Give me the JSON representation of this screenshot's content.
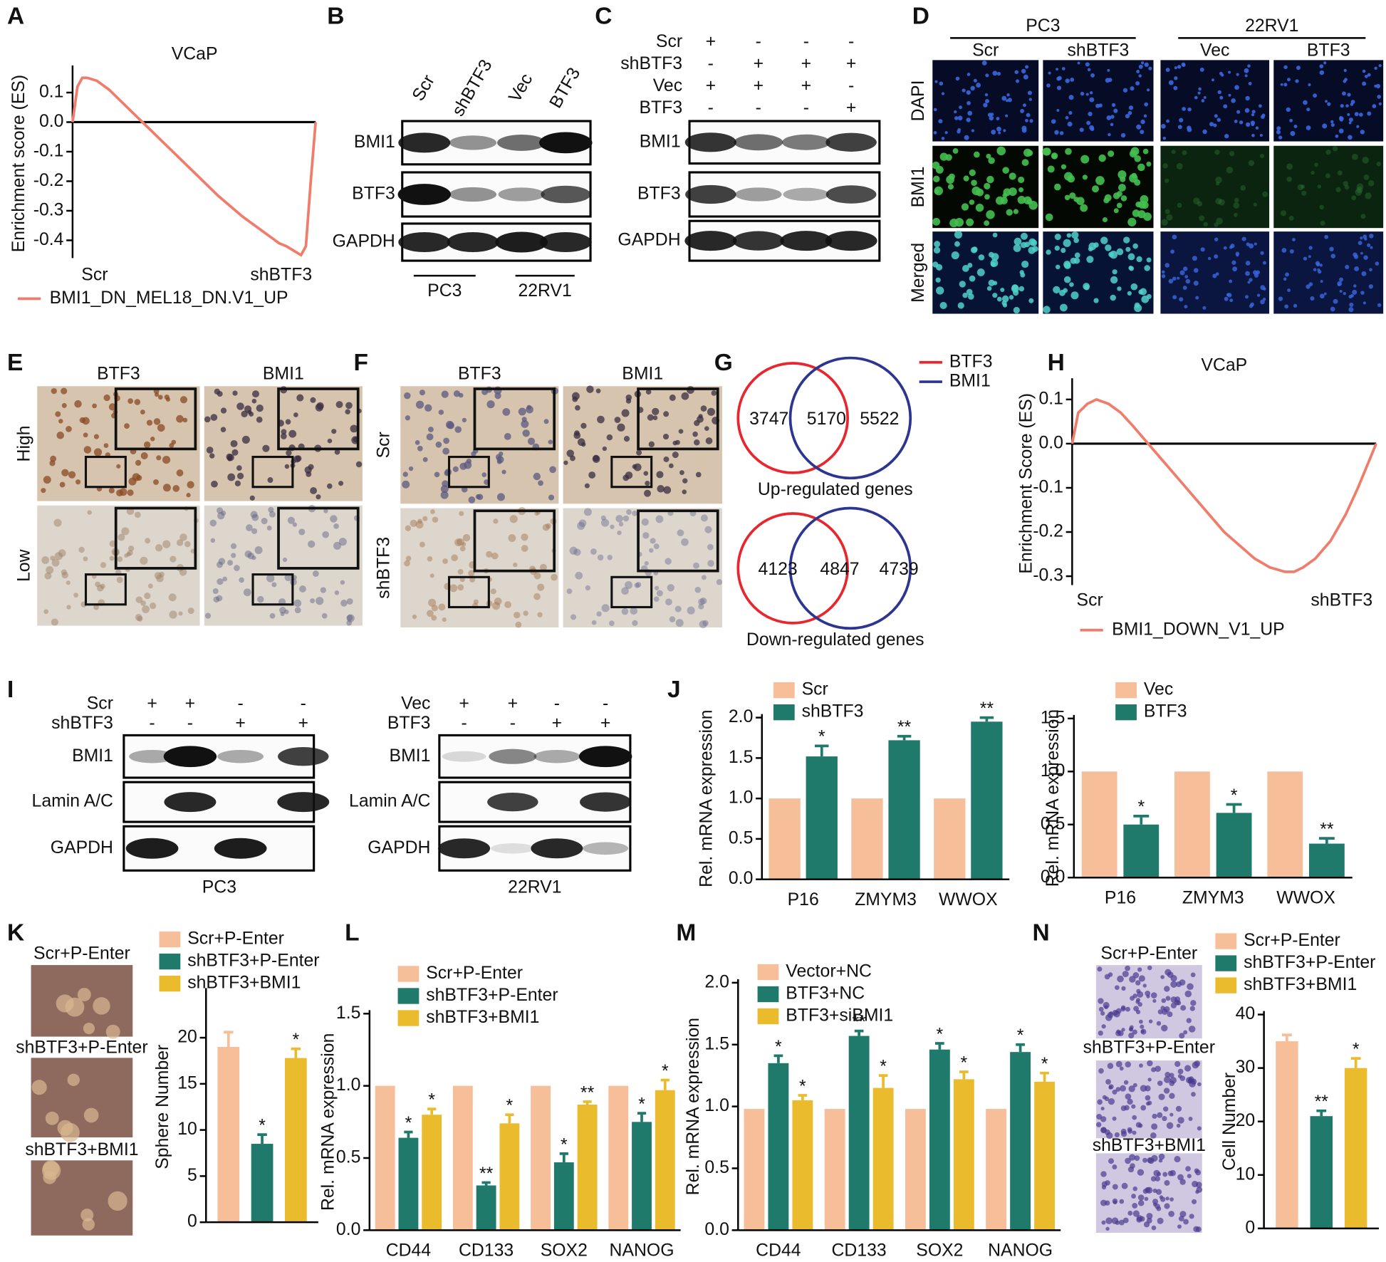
{
  "panel_labels": [
    "A",
    "B",
    "C",
    "D",
    "E",
    "F",
    "G",
    "H",
    "I",
    "J",
    "K",
    "L",
    "M",
    "N"
  ],
  "chart_data": [
    {
      "type": "line",
      "title": "VCaP",
      "y_label": "Enrichment score (ES)",
      "x_labels": [
        "Scr",
        "shBTF3"
      ],
      "xlim": [
        0,
        100
      ],
      "ylim": [
        -0.46,
        0.18
      ],
      "yticks": [
        0.1,
        {
          "value": 0,
          "label": "0.0"
        },
        -0.1,
        -0.2,
        -0.3,
        -0.4
      ],
      "series": [
        {
          "name": "BMI1_DN_MEL18_DN.V1_UP",
          "color": "#f07c6c",
          "x": [
            0,
            2,
            4,
            6,
            10,
            15,
            20,
            25,
            30,
            40,
            50,
            60,
            70,
            80,
            85,
            88,
            90,
            92,
            94,
            96,
            98,
            100
          ],
          "values": [
            0,
            0.12,
            0.15,
            0.15,
            0.14,
            0.11,
            0.07,
            0.03,
            -0.01,
            -0.09,
            -0.17,
            -0.25,
            -0.32,
            -0.38,
            -0.41,
            -0.42,
            -0.43,
            -0.44,
            -0.45,
            -0.42,
            -0.2,
            0
          ]
        }
      ]
    },
    {
      "type": "line",
      "title": "VCaP",
      "y_label": "Enrichment Score (ES)",
      "x_labels": [
        "Scr",
        "shBTF3"
      ],
      "xlim": [
        0,
        100
      ],
      "ylim": [
        -0.32,
        0.14
      ],
      "yticks": [
        0.1,
        {
          "value": 0,
          "label": "0.0"
        },
        -0.1,
        -0.2,
        -0.3
      ],
      "series": [
        {
          "name": "BMI1_DOWN_V1_UP",
          "color": "#f07c6c",
          "x": [
            0,
            2,
            5,
            8,
            12,
            16,
            20,
            25,
            30,
            40,
            50,
            60,
            65,
            70,
            73,
            76,
            80,
            85,
            90,
            94,
            97,
            100
          ],
          "values": [
            0,
            0.07,
            0.09,
            0.1,
            0.09,
            0.07,
            0.04,
            0,
            -0.04,
            -0.12,
            -0.2,
            -0.26,
            -0.28,
            -0.29,
            -0.29,
            -0.28,
            -0.26,
            -0.22,
            -0.16,
            -0.1,
            -0.05,
            0
          ]
        }
      ]
    },
    {
      "type": "bar",
      "y_label": "Rel. mRNA  expression",
      "categories": [
        "P16",
        "ZMYM3",
        "WWOX"
      ],
      "ylim": [
        0,
        2
      ],
      "yticks": [
        {
          "value": 0,
          "label": "0.0"
        },
        0.5,
        {
          "value": 1,
          "label": "1.0"
        },
        1.5,
        {
          "value": 2,
          "label": "2.0"
        }
      ],
      "series": [
        {
          "name": "Scr",
          "color": "#f7be9a",
          "values": [
            1,
            1,
            1
          ]
        },
        {
          "name": "shBTF3",
          "color": "#1f7a6b",
          "values": [
            1.52,
            1.72,
            1.95
          ],
          "errors": [
            0.13,
            0.05,
            0.05
          ],
          "significance": [
            "*",
            "**",
            "**"
          ]
        }
      ]
    },
    {
      "type": "bar",
      "y_label": "Rel. mRNA  expression",
      "categories": [
        "P16",
        "ZMYM3",
        "WWOX"
      ],
      "ylim": [
        0,
        1.5
      ],
      "yticks": [
        {
          "value": 0,
          "label": "0.0"
        },
        0.5,
        {
          "value": 1,
          "label": "1.0"
        },
        1.5
      ],
      "series": [
        {
          "name": "Vec",
          "color": "#f7be9a",
          "values": [
            1,
            1,
            1
          ]
        },
        {
          "name": "BTF3",
          "color": "#1f7a6b",
          "values": [
            0.5,
            0.61,
            0.32
          ],
          "errors": [
            0.08,
            0.08,
            0.05
          ],
          "significance": [
            "*",
            "*",
            "**"
          ]
        }
      ]
    },
    {
      "type": "bar",
      "y_label": "Sphere Number",
      "categories": [
        null
      ],
      "ylim": [
        0,
        25
      ],
      "yticks": [
        0,
        5,
        10,
        15,
        20
      ],
      "series": [
        {
          "name": "Scr+P-Enter",
          "color": "#f7be9a",
          "values": [
            19
          ],
          "errors": [
            1.6
          ]
        },
        {
          "name": "shBTF3+P-Enter",
          "color": "#1f7a6b",
          "values": [
            8.5
          ],
          "errors": [
            1
          ],
          "significance": [
            "*"
          ]
        },
        {
          "name": "shBTF3+BMI1",
          "color": "#ebbb2e",
          "values": [
            17.8
          ],
          "errors": [
            1
          ],
          "significance": [
            "*"
          ]
        }
      ]
    },
    {
      "type": "bar",
      "y_label": "Rel. mRNA expression",
      "categories": [
        "CD44",
        "CD133",
        "SOX2",
        "NANOG"
      ],
      "ylim": [
        0,
        1.5
      ],
      "yticks": [
        {
          "value": 0,
          "label": "0.0"
        },
        0.5,
        {
          "value": 1,
          "label": "1.0"
        },
        1.5
      ],
      "series": [
        {
          "name": "Scr+P-Enter",
          "color": "#f7be9a",
          "values": [
            1,
            1,
            1,
            1
          ]
        },
        {
          "name": "shBTF3+P-Enter",
          "color": "#1f7a6b",
          "values": [
            0.64,
            0.31,
            0.47,
            0.75
          ],
          "errors": [
            0.04,
            0.02,
            0.06,
            0.06
          ],
          "significance": [
            "*",
            "**",
            "*",
            "*"
          ]
        },
        {
          "name": "shBTF3+BMI1",
          "color": "#ebbb2e",
          "values": [
            0.8,
            0.74,
            0.87,
            0.97
          ],
          "errors": [
            0.04,
            0.06,
            0.02,
            0.07
          ],
          "significance": [
            "*",
            "*",
            "**",
            "*"
          ]
        }
      ]
    },
    {
      "type": "bar",
      "y_label": "Rel. mRNA expression",
      "categories": [
        "CD44",
        "CD133",
        "SOX2",
        "NANOG"
      ],
      "ylim": [
        0,
        2
      ],
      "yticks": [
        {
          "value": 0,
          "label": "0.0"
        },
        0.5,
        {
          "value": 1,
          "label": "1.0"
        },
        1.5,
        {
          "value": 2,
          "label": "2.0"
        }
      ],
      "series": [
        {
          "name": "Vector+NC",
          "color": "#f7be9a",
          "values": [
            0.98,
            0.98,
            0.98,
            0.98
          ]
        },
        {
          "name": "BTF3+NC",
          "color": "#1f7a6b",
          "values": [
            1.35,
            1.57,
            1.46,
            1.44
          ],
          "errors": [
            0.06,
            0.04,
            0.05,
            0.06
          ],
          "significance": [
            "*",
            "**",
            "*",
            "*"
          ]
        },
        {
          "name": "BTF3+siBMI1",
          "color": "#ebbb2e",
          "values": [
            1.05,
            1.15,
            1.22,
            1.2
          ],
          "errors": [
            0.04,
            0.1,
            0.06,
            0.07
          ],
          "significance": [
            "*",
            "*",
            "*",
            "*"
          ]
        }
      ]
    },
    {
      "type": "bar",
      "y_label": "Cell Number",
      "categories": [
        null
      ],
      "ylim": [
        0,
        40
      ],
      "yticks": [
        0,
        10,
        20,
        30,
        40
      ],
      "series": [
        {
          "name": "Scr+P-Enter",
          "color": "#f7be9a",
          "values": [
            35
          ],
          "errors": [
            1.2
          ]
        },
        {
          "name": "shBTF3+P-Enter",
          "color": "#1f7a6b",
          "values": [
            21
          ],
          "errors": [
            1
          ],
          "significance": [
            "**"
          ]
        },
        {
          "name": "shBTF3+BMI1",
          "color": "#ebbb2e",
          "values": [
            30
          ],
          "errors": [
            1.8
          ],
          "significance": [
            "*"
          ]
        }
      ]
    }
  ],
  "blot_B": {
    "lanes": [
      "Scr",
      "shBTF3",
      "Vec",
      "BTF3"
    ],
    "rows": [
      "BMI1",
      "BTF3",
      "GAPDH"
    ],
    "groups": [
      "PC3",
      "22RV1"
    ]
  },
  "blot_C": {
    "conditions": [
      {
        "name": "Scr",
        "signs": [
          "+",
          "-",
          "-",
          "-"
        ]
      },
      {
        "name": "shBTF3",
        "signs": [
          "-",
          "+",
          "+",
          "+"
        ]
      },
      {
        "name": "Vec",
        "signs": [
          "+",
          "+",
          "+",
          "-"
        ]
      },
      {
        "name": "BTF3",
        "signs": [
          "-",
          "-",
          "-",
          "+"
        ]
      }
    ],
    "rows": [
      "BMI1",
      "BTF3",
      "GAPDH"
    ]
  },
  "if_D": {
    "groups": [
      {
        "name": "PC3",
        "columns": [
          "Scr",
          "shBTF3"
        ]
      },
      {
        "name": "22RV1",
        "columns": [
          "Vec",
          "BTF3"
        ]
      }
    ],
    "rows": [
      "DAPI",
      "BMI1",
      "Merged"
    ]
  },
  "ihc_E": {
    "columns": [
      "BTF3",
      "BMI1"
    ],
    "rows": [
      "High",
      "Low"
    ]
  },
  "ihc_F": {
    "columns": [
      "BTF3",
      "BMI1"
    ],
    "rows": [
      "Scr",
      "shBTF3"
    ]
  },
  "venn_G": {
    "legend": [
      {
        "name": "BTF3",
        "color": "#e8262e"
      },
      {
        "name": "BMI1",
        "color": "#2c3590"
      }
    ],
    "sets": [
      {
        "counts": [
          3747,
          5170,
          5522
        ],
        "label": "Up-regulated genes"
      },
      {
        "counts": [
          4123,
          4847,
          4739
        ],
        "label": "Down-regulated genes"
      }
    ]
  },
  "blot_I": [
    {
      "conditions": [
        {
          "name": "Scr",
          "signs": [
            "+",
            "+",
            "-",
            "-"
          ]
        },
        {
          "name": "shBTF3",
          "signs": [
            "-",
            "-",
            "+",
            "+"
          ]
        }
      ],
      "rows": [
        "BMI1",
        "Lamin A/C",
        "GAPDH"
      ],
      "group": "PC3"
    },
    {
      "conditions": [
        {
          "name": "Vec",
          "signs": [
            "+",
            "+",
            "-",
            "-"
          ]
        },
        {
          "name": "BTF3",
          "signs": [
            "-",
            "-",
            "+",
            "+"
          ]
        }
      ],
      "rows": [
        "BMI1",
        "Lamin A/C",
        "GAPDH"
      ],
      "group": "22RV1"
    }
  ],
  "images_K": [
    "Scr+P-Enter",
    "shBTF3+P-Enter",
    "shBTF3+BMI1"
  ],
  "images_N": [
    "Scr+P-Enter",
    "shBTF3+P-Enter",
    "shBTF3+BMI1"
  ]
}
